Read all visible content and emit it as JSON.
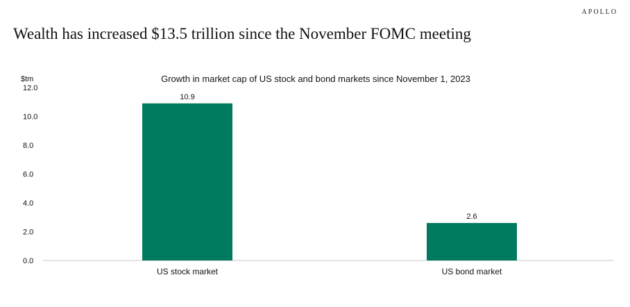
{
  "brand": "APOLLO",
  "headline": "Wealth has increased $13.5 trillion since the November FOMC meeting",
  "chart_data": {
    "type": "bar",
    "title": "Growth in market cap of US stock and bond markets since November 1, 2023",
    "ylabel": "$tm",
    "xlabel": "",
    "ylim": [
      0,
      12
    ],
    "yticks": [
      "0.0",
      "2.0",
      "4.0",
      "6.0",
      "8.0",
      "10.0",
      "12.0"
    ],
    "categories": [
      "US stock market",
      "US bond market"
    ],
    "values": [
      10.9,
      2.6
    ],
    "data_labels": [
      "10.9",
      "2.6"
    ],
    "bar_color": "#007A5E",
    "grid": false,
    "legend": "none"
  }
}
